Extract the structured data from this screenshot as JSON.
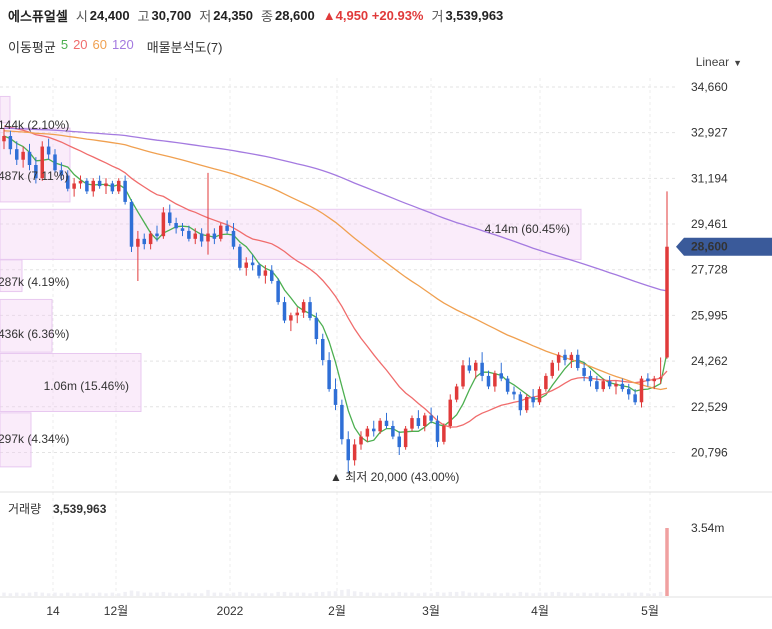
{
  "header": {
    "name": "에스퓨얼셀",
    "open_label": "시",
    "open": "24,400",
    "high_label": "고",
    "high": "30,700",
    "low_label": "저",
    "low": "24,350",
    "close_label": "종",
    "close": "28,600",
    "change": "4,950",
    "change_pct": "+20.93%",
    "volume_label": "거",
    "volume": "3,539,963"
  },
  "ma_legend": {
    "title": "이동평균",
    "periods": [
      "5",
      "20",
      "60",
      "120"
    ],
    "colors": [
      "#4caf50",
      "#f06c6c",
      "#f0a050",
      "#a47ae0"
    ],
    "profile_title": "매물분석도(7)"
  },
  "scale_label": "Linear",
  "chart_data": {
    "type": "candlestick",
    "y_ticks": [
      "34,660",
      "32,927",
      "31,194",
      "29,461",
      "27,728",
      "25,995",
      "24,262",
      "22,529",
      "20,796"
    ],
    "ylim": [
      19600,
      35000
    ],
    "x_ticks": [
      "14",
      "12월",
      "2022",
      "2월",
      "3월",
      "4월",
      "5월"
    ],
    "current_price": "28,600",
    "low_annotation": "▲ 최저 20,000 (43.00%)",
    "volume_panel": {
      "label": "거래량",
      "value": "3,539,963",
      "tick": "3.54m"
    },
    "volume_profile": [
      {
        "label": "144k (2.10%)"
      },
      {
        "label": "487k (7.11%)"
      },
      {
        "label": "4.14m (60.45%)"
      },
      {
        "label": "287k (4.19%)"
      },
      {
        "label": "436k (6.36%)"
      },
      {
        "label": "1.06m (15.46%)"
      },
      {
        "label": "297k (4.34%)"
      }
    ],
    "candles": [
      [
        32600,
        33100,
        32300,
        32800
      ],
      [
        32800,
        33000,
        32100,
        32300
      ],
      [
        32300,
        32600,
        31700,
        31900
      ],
      [
        31900,
        32400,
        31600,
        32200
      ],
      [
        32200,
        32500,
        31500,
        31700
      ],
      [
        31700,
        32000,
        31000,
        31200
      ],
      [
        31200,
        32600,
        31100,
        32400
      ],
      [
        32400,
        32700,
        31900,
        32100
      ],
      [
        32100,
        32300,
        31400,
        31500
      ],
      [
        31500,
        31800,
        31100,
        31300
      ],
      [
        31300,
        31500,
        30700,
        30800
      ],
      [
        30800,
        31200,
        30500,
        31000
      ],
      [
        31000,
        31300,
        30800,
        31100
      ],
      [
        31100,
        31200,
        30600,
        30700
      ],
      [
        30700,
        31200,
        30500,
        31100
      ],
      [
        31100,
        31300,
        30800,
        30900
      ],
      [
        30900,
        31200,
        30600,
        31000
      ],
      [
        31000,
        31100,
        30600,
        30700
      ],
      [
        30700,
        31200,
        30600,
        31100
      ],
      [
        31100,
        31300,
        30200,
        30300
      ],
      [
        30300,
        30400,
        28400,
        28600
      ],
      [
        28600,
        29200,
        27300,
        28900
      ],
      [
        28900,
        29100,
        28500,
        28700
      ],
      [
        28700,
        29200,
        28500,
        29100
      ],
      [
        29100,
        29400,
        28800,
        29000
      ],
      [
        29000,
        30100,
        28900,
        29900
      ],
      [
        29900,
        30200,
        29400,
        29500
      ],
      [
        29500,
        29700,
        29100,
        29300
      ],
      [
        29300,
        29500,
        29000,
        29200
      ],
      [
        29200,
        29400,
        28800,
        28900
      ],
      [
        28900,
        29300,
        28700,
        29100
      ],
      [
        29100,
        29300,
        28600,
        28800
      ],
      [
        28800,
        31400,
        28300,
        29100
      ],
      [
        29100,
        29300,
        28700,
        28900
      ],
      [
        28900,
        29500,
        28800,
        29400
      ],
      [
        29400,
        29600,
        29100,
        29200
      ],
      [
        29200,
        29500,
        28500,
        28600
      ],
      [
        28600,
        28700,
        27700,
        27800
      ],
      [
        27800,
        28200,
        27500,
        28000
      ],
      [
        28000,
        28300,
        27700,
        27900
      ],
      [
        27900,
        28000,
        27400,
        27500
      ],
      [
        27500,
        27900,
        27200,
        27700
      ],
      [
        27700,
        27900,
        27200,
        27300
      ],
      [
        27300,
        27400,
        26400,
        26500
      ],
      [
        26500,
        26700,
        25700,
        25800
      ],
      [
        25800,
        26100,
        25400,
        26000
      ],
      [
        26000,
        26300,
        25700,
        26100
      ],
      [
        26100,
        26600,
        25900,
        26500
      ],
      [
        26500,
        26700,
        25800,
        25900
      ],
      [
        25900,
        26100,
        24900,
        25100
      ],
      [
        25100,
        25300,
        24100,
        24300
      ],
      [
        24300,
        24600,
        23100,
        23200
      ],
      [
        23200,
        23600,
        22400,
        22600
      ],
      [
        22600,
        22800,
        21100,
        21300
      ],
      [
        21300,
        21600,
        20000,
        20500
      ],
      [
        20500,
        21300,
        20300,
        21100
      ],
      [
        21100,
        21600,
        20900,
        21400
      ],
      [
        21400,
        21800,
        21200,
        21700
      ],
      [
        21700,
        22000,
        21400,
        21600
      ],
      [
        21600,
        22100,
        21500,
        22000
      ],
      [
        22000,
        22300,
        21700,
        21800
      ],
      [
        21800,
        22000,
        21300,
        21400
      ],
      [
        21400,
        21600,
        20700,
        21000
      ],
      [
        21000,
        21800,
        20900,
        21700
      ],
      [
        21700,
        22200,
        21600,
        22100
      ],
      [
        22100,
        22400,
        21700,
        21800
      ],
      [
        21800,
        22300,
        21600,
        22200
      ],
      [
        22200,
        22500,
        21900,
        22000
      ],
      [
        22000,
        22200,
        21000,
        21200
      ],
      [
        21200,
        21900,
        21100,
        21800
      ],
      [
        21800,
        23000,
        21700,
        22800
      ],
      [
        22800,
        23400,
        22700,
        23300
      ],
      [
        23300,
        24300,
        23200,
        24100
      ],
      [
        24100,
        24400,
        23800,
        23900
      ],
      [
        23900,
        24300,
        23600,
        24200
      ],
      [
        24200,
        24600,
        23500,
        23700
      ],
      [
        23700,
        23900,
        23200,
        23300
      ],
      [
        23300,
        23900,
        23100,
        23800
      ],
      [
        23800,
        24200,
        23500,
        23600
      ],
      [
        23600,
        23700,
        23000,
        23100
      ],
      [
        23100,
        23300,
        22800,
        23000
      ],
      [
        23000,
        23100,
        22200,
        22400
      ],
      [
        22400,
        23000,
        22300,
        22900
      ],
      [
        22900,
        23200,
        22500,
        22700
      ],
      [
        22700,
        23300,
        22600,
        23200
      ],
      [
        23200,
        23800,
        23100,
        23700
      ],
      [
        23700,
        24300,
        23600,
        24200
      ],
      [
        24200,
        24600,
        23900,
        24500
      ],
      [
        24500,
        24700,
        24100,
        24300
      ],
      [
        24300,
        24600,
        24000,
        24500
      ],
      [
        24500,
        24700,
        23900,
        24000
      ],
      [
        24000,
        24200,
        23500,
        23700
      ],
      [
        23700,
        23900,
        23300,
        23500
      ],
      [
        23500,
        23700,
        23100,
        23200
      ],
      [
        23200,
        23600,
        23100,
        23500
      ],
      [
        23500,
        23700,
        23200,
        23300
      ],
      [
        23300,
        23500,
        23000,
        23400
      ],
      [
        23400,
        23600,
        23100,
        23200
      ],
      [
        23200,
        23400,
        22800,
        23000
      ],
      [
        23000,
        23200,
        22600,
        22700
      ],
      [
        22700,
        23700,
        22500,
        23600
      ],
      [
        23600,
        23800,
        23300,
        23500
      ],
      [
        23500,
        23700,
        23200,
        23600
      ],
      [
        23600,
        24400,
        23400,
        23650
      ],
      [
        24400,
        30700,
        24350,
        28600
      ]
    ],
    "volumes": [
      0.05,
      0.04,
      0.05,
      0.04,
      0.05,
      0.06,
      0.05,
      0.04,
      0.05,
      0.04,
      0.05,
      0.04,
      0.04,
      0.05,
      0.04,
      0.05,
      0.04,
      0.05,
      0.04,
      0.06,
      0.08,
      0.07,
      0.05,
      0.05,
      0.05,
      0.06,
      0.05,
      0.04,
      0.04,
      0.05,
      0.04,
      0.04,
      0.09,
      0.05,
      0.05,
      0.04,
      0.05,
      0.06,
      0.05,
      0.04,
      0.04,
      0.05,
      0.04,
      0.06,
      0.06,
      0.05,
      0.05,
      0.05,
      0.04,
      0.06,
      0.06,
      0.07,
      0.07,
      0.09,
      0.1,
      0.07,
      0.06,
      0.05,
      0.05,
      0.05,
      0.04,
      0.05,
      0.06,
      0.05,
      0.05,
      0.04,
      0.05,
      0.04,
      0.06,
      0.05,
      0.06,
      0.06,
      0.07,
      0.05,
      0.05,
      0.05,
      0.04,
      0.05,
      0.04,
      0.05,
      0.04,
      0.06,
      0.05,
      0.04,
      0.05,
      0.05,
      0.06,
      0.06,
      0.05,
      0.05,
      0.04,
      0.05,
      0.04,
      0.05,
      0.04,
      0.04,
      0.04,
      0.04,
      0.05,
      0.05,
      0.05,
      0.04,
      0.04,
      0.06,
      1.0
    ]
  }
}
